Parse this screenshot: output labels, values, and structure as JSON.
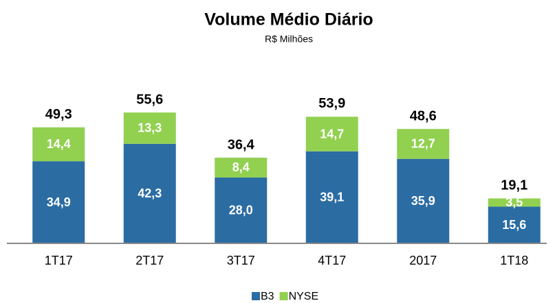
{
  "chart_data": {
    "type": "stacked_bar",
    "title": "Volume Médio Diário",
    "subtitle": "R$ Milhões",
    "categories": [
      "1T17",
      "2T17",
      "3T17",
      "4T17",
      "2017",
      "1T18"
    ],
    "series": [
      {
        "name": "B3",
        "color": "#2b6ca3",
        "values": [
          34.9,
          42.3,
          28.0,
          39.1,
          35.9,
          15.6
        ],
        "value_labels": [
          "34,9",
          "42,3",
          "28,0",
          "39,1",
          "35,9",
          "15,6"
        ]
      },
      {
        "name": "NYSE",
        "color": "#92d050",
        "values": [
          14.4,
          13.3,
          8.4,
          14.7,
          12.7,
          3.5
        ],
        "value_labels": [
          "14,4",
          "13,3",
          "8,4",
          "14,7",
          "12,7",
          "3,5"
        ]
      }
    ],
    "totals": [
      49.3,
      55.6,
      36.4,
      53.9,
      48.6,
      19.1
    ],
    "total_labels": [
      "49,3",
      "55,6",
      "36,4",
      "53,9",
      "48,6",
      "19,1"
    ],
    "ylim": [
      0,
      60
    ],
    "legend": "bottom"
  }
}
